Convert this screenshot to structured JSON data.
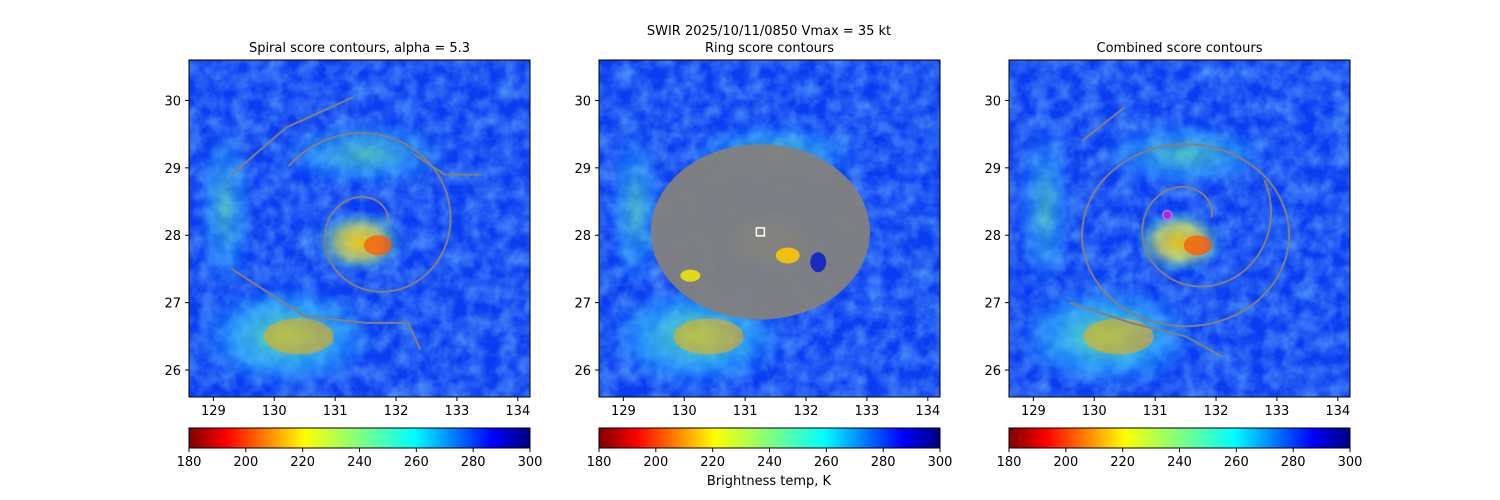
{
  "figure": {
    "suptitle_line1": "SWIR  2025/10/11/0850    Vmax = 35 kt",
    "colorbar_label": "Brightness temp, K"
  },
  "chart_data": [
    {
      "type": "heatmap",
      "title": "Spiral score contours, alpha =  5.3",
      "xlim": [
        128.6,
        134.2
      ],
      "ylim": [
        25.6,
        30.6
      ],
      "xticks": [
        129,
        130,
        131,
        132,
        133,
        134
      ],
      "yticks": [
        26,
        27,
        28,
        29,
        30
      ],
      "overlay": "spiral contours",
      "contour_color": "#808080",
      "colorbar": {
        "ticks": [
          180,
          200,
          220,
          240,
          260,
          280,
          300
        ],
        "cmap": "jet_r",
        "range": [
          180,
          300
        ]
      }
    },
    {
      "type": "heatmap",
      "title": "Ring score contours",
      "xlim": [
        128.6,
        134.2
      ],
      "ylim": [
        25.6,
        30.6
      ],
      "xticks": [
        129,
        130,
        131,
        132,
        133,
        134
      ],
      "yticks": [
        26,
        27,
        28,
        29,
        30
      ],
      "overlay": "ring score mask",
      "ring_center": [
        131.25,
        28.05
      ],
      "ring_center_marker": "white open square",
      "colorbar": {
        "ticks": [
          180,
          200,
          220,
          240,
          260,
          280,
          300
        ],
        "cmap": "jet_r",
        "range": [
          180,
          300
        ]
      }
    },
    {
      "type": "heatmap",
      "title": "Combined score contours",
      "xlim": [
        128.6,
        134.2
      ],
      "ylim": [
        25.6,
        30.6
      ],
      "xticks": [
        129,
        130,
        131,
        132,
        133,
        134
      ],
      "yticks": [
        26,
        27,
        28,
        29,
        30
      ],
      "overlay": "combined contours",
      "center_marker": {
        "lon": 131.2,
        "lat": 28.3,
        "color": "#9933cc"
      },
      "colorbar": {
        "ticks": [
          180,
          200,
          220,
          240,
          260,
          280,
          300
        ],
        "cmap": "jet_r",
        "range": [
          180,
          300
        ]
      }
    }
  ]
}
